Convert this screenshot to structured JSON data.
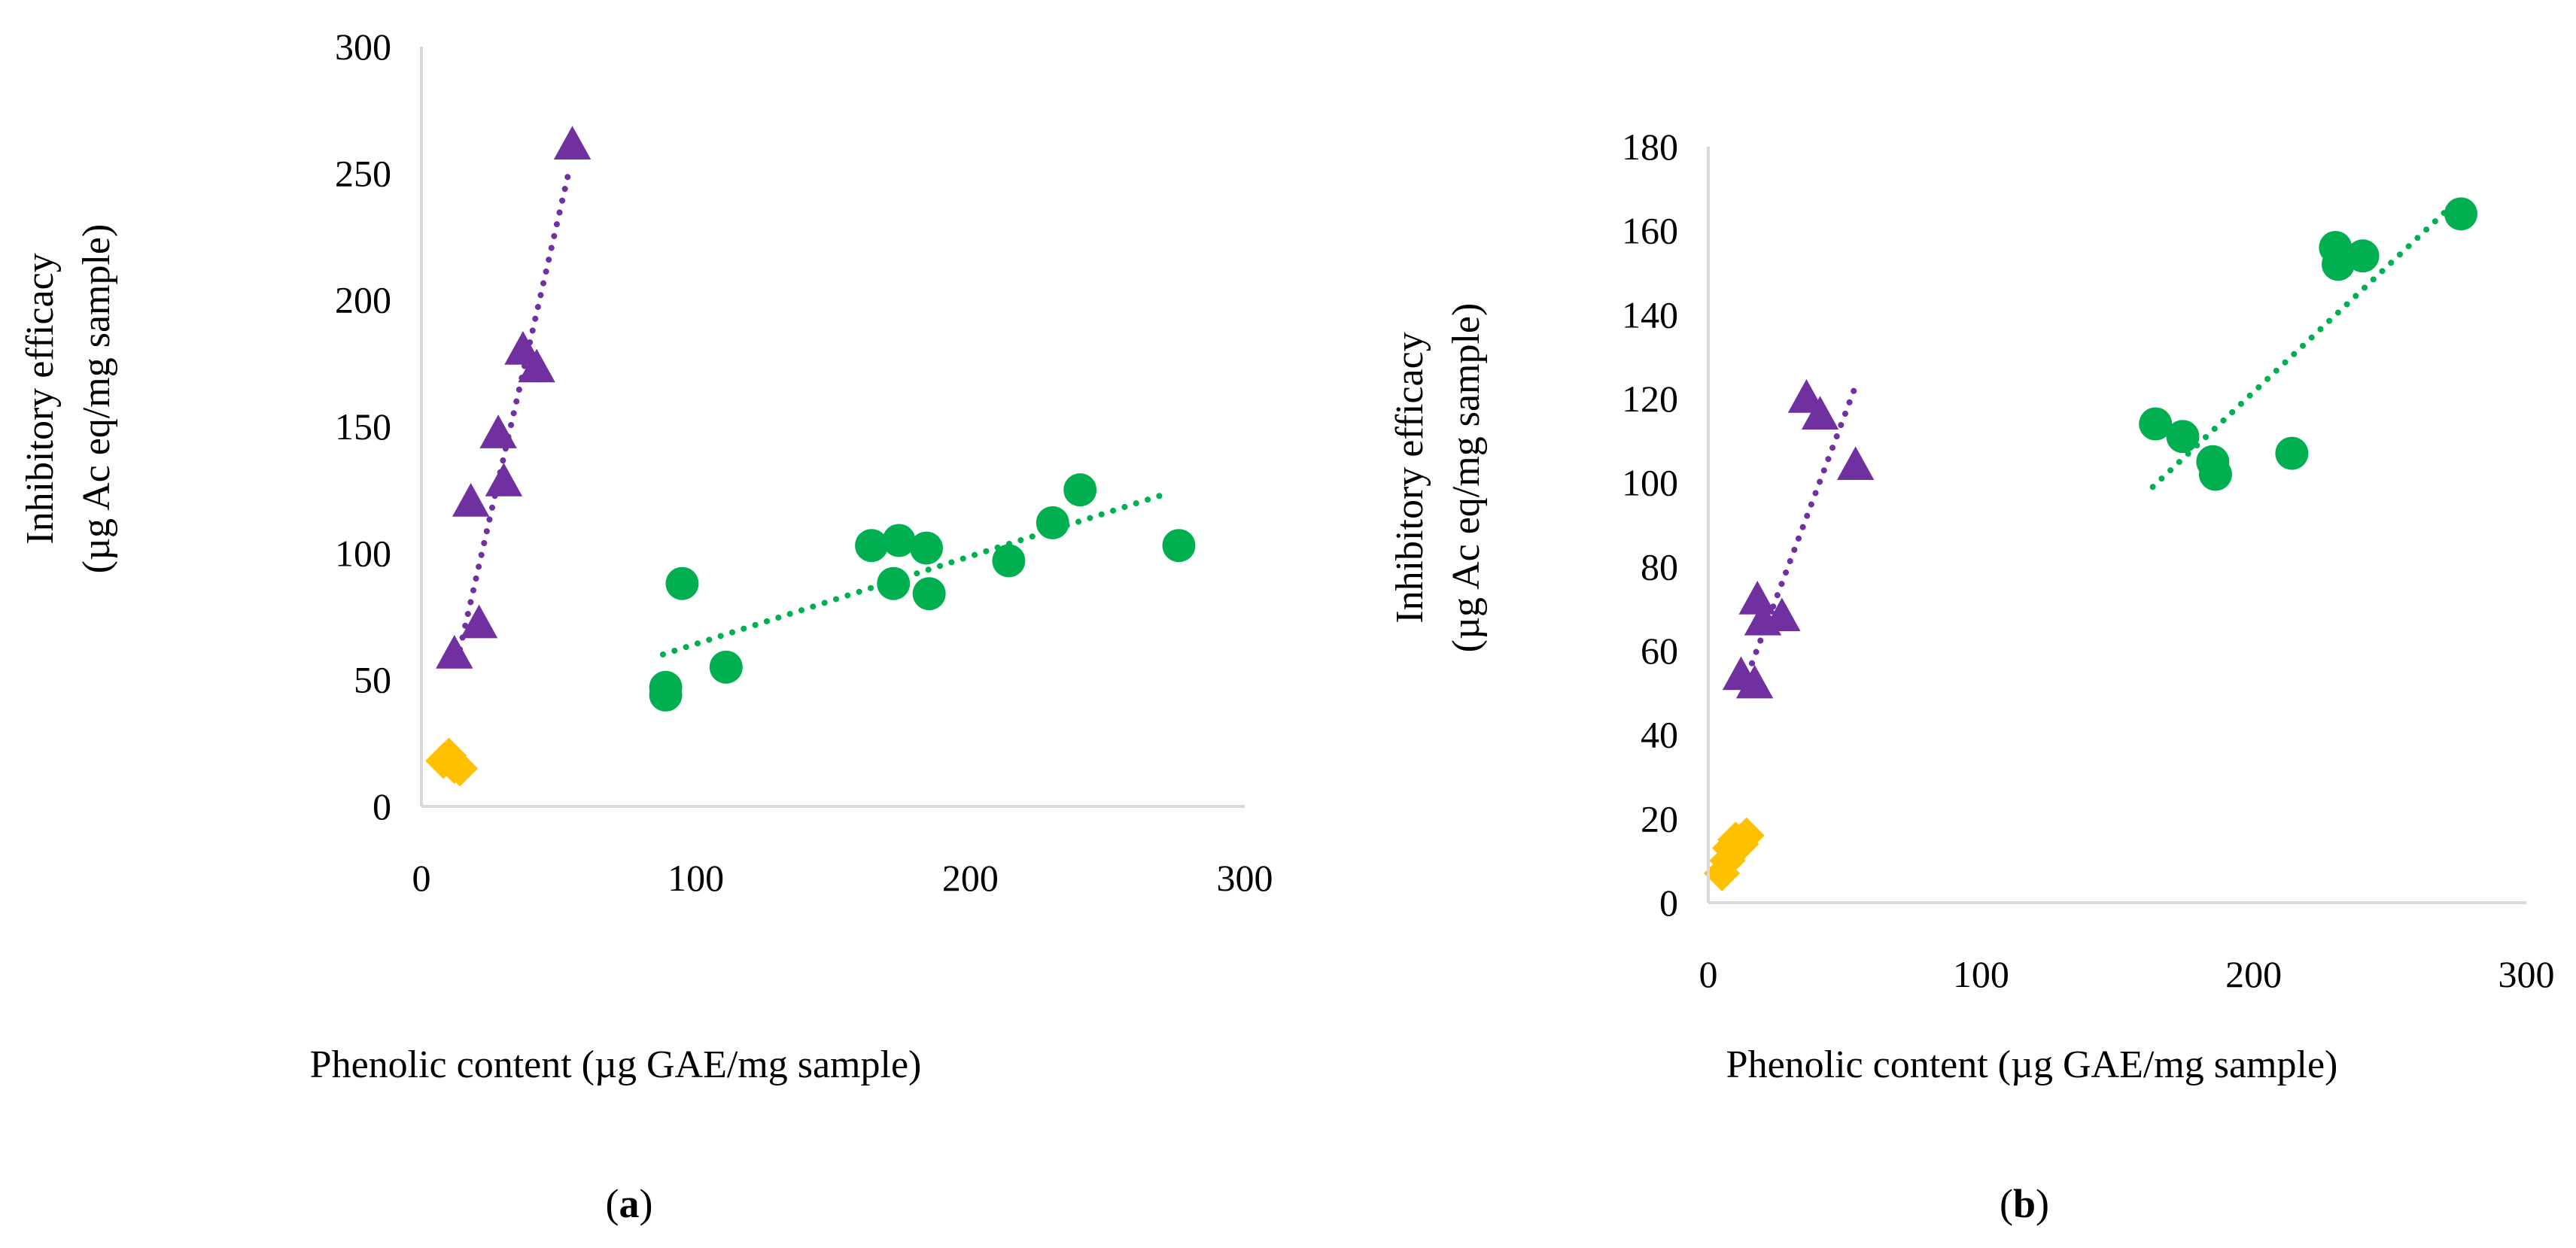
{
  "colors": {
    "green": "#00b050",
    "purple": "#7030a0",
    "yellow": "#ffc000",
    "axis": "#d9d9d9"
  },
  "chart_data": [
    {
      "type": "scatter",
      "panel": {
        "open": "(",
        "letter": "a",
        "close": ")"
      },
      "xlabel": "Phenolic content (µg GAE/mg sample)",
      "ylabel_line1": "Inhibitory efficacy",
      "ylabel_line2": "(µg Ac eq/mg sample)",
      "xlim": [
        0,
        300
      ],
      "ylim": [
        0,
        300
      ],
      "xticks": [
        0,
        100,
        200,
        300
      ],
      "yticks": [
        0,
        50,
        100,
        150,
        200,
        250,
        300
      ],
      "series": [
        {
          "name": "green-circles",
          "marker": "circle",
          "color": "#00b050",
          "points": [
            [
              89,
              47
            ],
            [
              89,
              44
            ],
            [
              95,
              88
            ],
            [
              111,
              55
            ],
            [
              164,
              103
            ],
            [
              172,
              88
            ],
            [
              174,
              105
            ],
            [
              184,
              102
            ],
            [
              185,
              84
            ],
            [
              214,
              97
            ],
            [
              230,
              112
            ],
            [
              240,
              125
            ],
            [
              276,
              103
            ]
          ],
          "trendline": [
            [
              88,
              60
            ],
            [
              270,
              123
            ]
          ]
        },
        {
          "name": "purple-triangles",
          "marker": "triangle",
          "color": "#7030a0",
          "points": [
            [
              12,
              60
            ],
            [
              18,
              120
            ],
            [
              21,
              72
            ],
            [
              28,
              147
            ],
            [
              30,
              128
            ],
            [
              37,
              180
            ],
            [
              42,
              173
            ],
            [
              55,
              261
            ]
          ],
          "trendline": [
            [
              14,
              62
            ],
            [
              54,
              252
            ]
          ]
        },
        {
          "name": "yellow-diamonds",
          "marker": "diamond",
          "color": "#ffc000",
          "points": [
            [
              8,
              18
            ],
            [
              10,
              20
            ],
            [
              12,
              16
            ],
            [
              14,
              15
            ]
          ],
          "trendline": null
        }
      ]
    },
    {
      "type": "scatter",
      "panel": {
        "open": "(",
        "letter": "b",
        "close": ")"
      },
      "xlabel": "Phenolic content (µg GAE/mg sample)",
      "ylabel_line1": "Inhibitory efficacy",
      "ylabel_line2": "(µg Ac eq/mg sample)",
      "xlim": [
        0,
        300
      ],
      "ylim": [
        0,
        180
      ],
      "xticks": [
        0,
        100,
        200,
        300
      ],
      "yticks": [
        0,
        20,
        40,
        60,
        80,
        100,
        120,
        140,
        160,
        180
      ],
      "series": [
        {
          "name": "green-circles",
          "marker": "circle",
          "color": "#00b050",
          "points": [
            [
              164,
              114
            ],
            [
              174,
              111
            ],
            [
              185,
              105
            ],
            [
              186,
              102
            ],
            [
              214,
              107
            ],
            [
              230,
              156
            ],
            [
              231,
              152
            ],
            [
              240,
              154
            ],
            [
              276,
              164
            ]
          ],
          "trendline": [
            [
              163,
              99
            ],
            [
              276,
              168
            ]
          ]
        },
        {
          "name": "purple-triangles",
          "marker": "triangle",
          "color": "#7030a0",
          "points": [
            [
              12,
              54
            ],
            [
              17,
              52
            ],
            [
              18,
              72
            ],
            [
              20,
              67
            ],
            [
              27,
              68
            ],
            [
              36,
              120
            ],
            [
              41,
              116
            ],
            [
              54,
              104
            ]
          ],
          "trendline": [
            [
              16,
              57
            ],
            [
              54,
              123
            ]
          ]
        },
        {
          "name": "yellow-diamonds",
          "marker": "diamond",
          "color": "#ffc000",
          "points": [
            [
              5,
              7
            ],
            [
              7,
              10
            ],
            [
              8,
              13
            ],
            [
              10,
              15
            ],
            [
              12,
              14
            ],
            [
              14,
              16
            ]
          ],
          "trendline": null
        }
      ]
    }
  ]
}
